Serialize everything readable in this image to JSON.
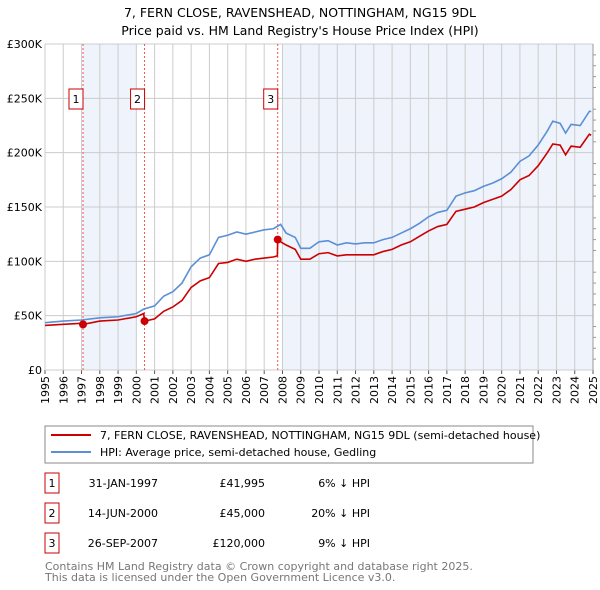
{
  "chart_data": {
    "type": "line",
    "title": "7, FERN CLOSE, RAVENSHEAD, NOTTINGHAM, NG15 9DL",
    "subtitle": "Price paid vs. HM Land Registry's House Price Index (HPI)",
    "xlim": [
      1995,
      2025
    ],
    "ylim": [
      0,
      300000
    ],
    "x_ticks": [
      "1995",
      "1996",
      "1997",
      "1998",
      "1999",
      "2000",
      "2001",
      "2002",
      "2003",
      "2004",
      "2005",
      "2006",
      "2007",
      "2008",
      "2009",
      "2010",
      "2011",
      "2012",
      "2013",
      "2014",
      "2015",
      "2016",
      "2017",
      "2018",
      "2019",
      "2020",
      "2021",
      "2022",
      "2023",
      "2024",
      "2025"
    ],
    "y_ticks": [
      {
        "v": 0,
        "label": "£0"
      },
      {
        "v": 50000,
        "label": "£50K"
      },
      {
        "v": 100000,
        "label": "£100K"
      },
      {
        "v": 150000,
        "label": "£150K"
      },
      {
        "v": 200000,
        "label": "£200K"
      },
      {
        "v": 250000,
        "label": "£250K"
      },
      {
        "v": 300000,
        "label": "£300K"
      }
    ],
    "grid": true,
    "shaded_ranges": [
      [
        1997.08,
        2000.0
      ],
      [
        2008.0,
        2025.0
      ]
    ],
    "series": [
      {
        "name": "7, FERN CLOSE, RAVENSHEAD, NOTTINGHAM, NG15 9DL (semi-detached house)",
        "color": "#cc0000",
        "x": [
          1995,
          1996,
          1997,
          1997.08,
          1998,
          1999,
          2000,
          2000.4,
          2000.45,
          2001,
          2001.5,
          2002,
          2002.5,
          2003,
          2003.5,
          2004,
          2004.5,
          2005,
          2005.5,
          2006,
          2006.5,
          2007,
          2007.5,
          2007.72,
          2007.74,
          2007.9,
          2008.2,
          2008.7,
          2009,
          2009.5,
          2010,
          2010.5,
          2011,
          2011.5,
          2012,
          2012.5,
          2013,
          2013.5,
          2014,
          2014.5,
          2015,
          2015.5,
          2016,
          2016.5,
          2017,
          2017.5,
          2018,
          2018.5,
          2019,
          2019.5,
          2020,
          2020.5,
          2021,
          2021.5,
          2022,
          2022.5,
          2022.8,
          2023.2,
          2023.5,
          2023.8,
          2024.3,
          2024.8,
          2024.9
        ],
        "values": [
          41000,
          42000,
          43000,
          41995,
          45000,
          46000,
          49000,
          52000,
          45000,
          47000,
          54000,
          58000,
          64000,
          76000,
          82000,
          85000,
          98000,
          99000,
          102000,
          100000,
          102000,
          103000,
          104000,
          105000,
          120000,
          118000,
          115000,
          111000,
          102000,
          102000,
          107000,
          108000,
          105000,
          106000,
          106000,
          106000,
          106000,
          109000,
          111000,
          115000,
          118000,
          123000,
          128000,
          132000,
          134000,
          146000,
          148000,
          150000,
          154000,
          157000,
          160000,
          166000,
          175000,
          179000,
          188000,
          200000,
          208000,
          207000,
          198000,
          206000,
          205000,
          217000,
          216000
        ]
      },
      {
        "name": "HPI: Average price, semi-detached house, Gedling",
        "color": "#5b8fd6",
        "x": [
          1995,
          1996,
          1997,
          1998,
          1999,
          2000,
          2000.4,
          2001,
          2001.5,
          2002,
          2002.5,
          2003,
          2003.5,
          2004,
          2004.5,
          2005,
          2005.5,
          2006,
          2006.5,
          2007,
          2007.5,
          2007.9,
          2008.2,
          2008.7,
          2009,
          2009.5,
          2010,
          2010.5,
          2011,
          2011.5,
          2012,
          2012.5,
          2013,
          2013.5,
          2014,
          2014.5,
          2015,
          2015.5,
          2016,
          2016.5,
          2017,
          2017.5,
          2018,
          2018.5,
          2019,
          2019.5,
          2020,
          2020.5,
          2021,
          2021.5,
          2022,
          2022.5,
          2022.8,
          2023.2,
          2023.5,
          2023.8,
          2024.3,
          2024.8,
          2024.9
        ],
        "values": [
          43500,
          45000,
          46000,
          48000,
          49000,
          52000,
          56000,
          59000,
          68000,
          72000,
          80000,
          95000,
          103000,
          106000,
          122000,
          124000,
          127000,
          125000,
          127000,
          129000,
          130000,
          134000,
          126000,
          122000,
          112000,
          112000,
          118000,
          119000,
          115000,
          117000,
          116000,
          117000,
          117000,
          120000,
          122000,
          126000,
          130000,
          135000,
          141000,
          145000,
          147000,
          160000,
          163000,
          165000,
          169000,
          172000,
          176000,
          182000,
          192000,
          197000,
          207000,
          220000,
          229000,
          227000,
          218000,
          226000,
          225000,
          238000,
          238000
        ]
      }
    ],
    "sales": [
      {
        "id": "1",
        "x": 1997.08,
        "value": 41995,
        "date": "31-JAN-1997",
        "price": "£41,995",
        "hpi": "6% ↓ HPI"
      },
      {
        "id": "2",
        "x": 2000.45,
        "value": 45000,
        "date": "14-JUN-2000",
        "price": "£45,000",
        "hpi": "20% ↓ HPI"
      },
      {
        "id": "3",
        "x": 2007.74,
        "value": 120000,
        "date": "26-SEP-2007",
        "price": "£120,000",
        "hpi": "9% ↓ HPI"
      }
    ],
    "legend_position": "bottom"
  },
  "footer": {
    "line1": "Contains HM Land Registry data © Crown copyright and database right 2025.",
    "line2": "This data is licensed under the Open Government Licence v3.0."
  }
}
